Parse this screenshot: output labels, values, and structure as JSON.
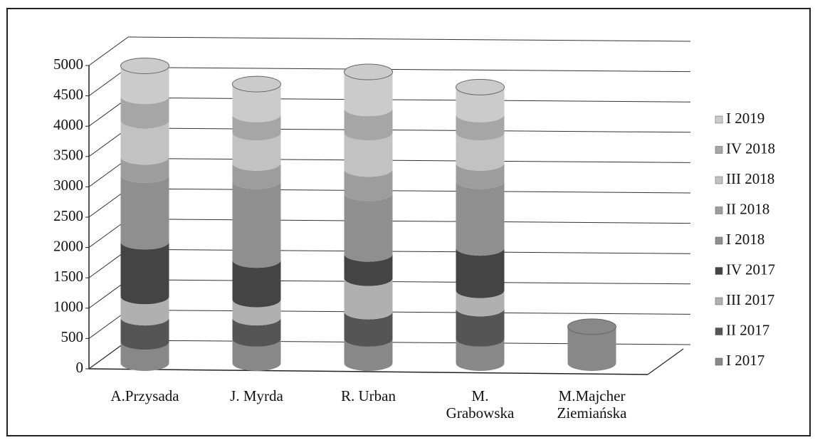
{
  "chart_data": {
    "type": "bar3d_stacked",
    "categories": [
      "A.Przysada",
      "J. Myrda",
      "R. Urban",
      "M.\nGrabowska",
      "M.Majcher\nZiemiańska"
    ],
    "series": [
      {
        "name": "I 2017",
        "color": "#888888",
        "values": [
          350,
          400,
          400,
          400,
          600
        ]
      },
      {
        "name": "II 2017",
        "color": "#555555",
        "values": [
          400,
          350,
          450,
          500,
          0
        ]
      },
      {
        "name": "III 2017",
        "color": "#b0b0b0",
        "values": [
          350,
          300,
          550,
          300,
          0
        ]
      },
      {
        "name": "IV 2017",
        "color": "#444444",
        "values": [
          900,
          650,
          400,
          700,
          0
        ]
      },
      {
        "name": "I 2018",
        "color": "#8f8f8f",
        "values": [
          1100,
          1300,
          1000,
          1100,
          0
        ]
      },
      {
        "name": "II 2018",
        "color": "#9d9d9d",
        "values": [
          300,
          300,
          400,
          300,
          0
        ]
      },
      {
        "name": "III 2018",
        "color": "#c2c2c2",
        "values": [
          600,
          500,
          600,
          500,
          0
        ]
      },
      {
        "name": "IV 2018",
        "color": "#a6a6a6",
        "values": [
          400,
          300,
          400,
          300,
          0
        ]
      },
      {
        "name": "I 2019",
        "color": "#cbcbcb",
        "values": [
          500,
          500,
          600,
          450,
          0
        ]
      }
    ],
    "ylim": [
      0,
      5000
    ],
    "yticks": [
      0,
      500,
      1000,
      1500,
      2000,
      2500,
      3000,
      3500,
      4000,
      4500,
      5000
    ],
    "grid": true,
    "legend": "right"
  }
}
